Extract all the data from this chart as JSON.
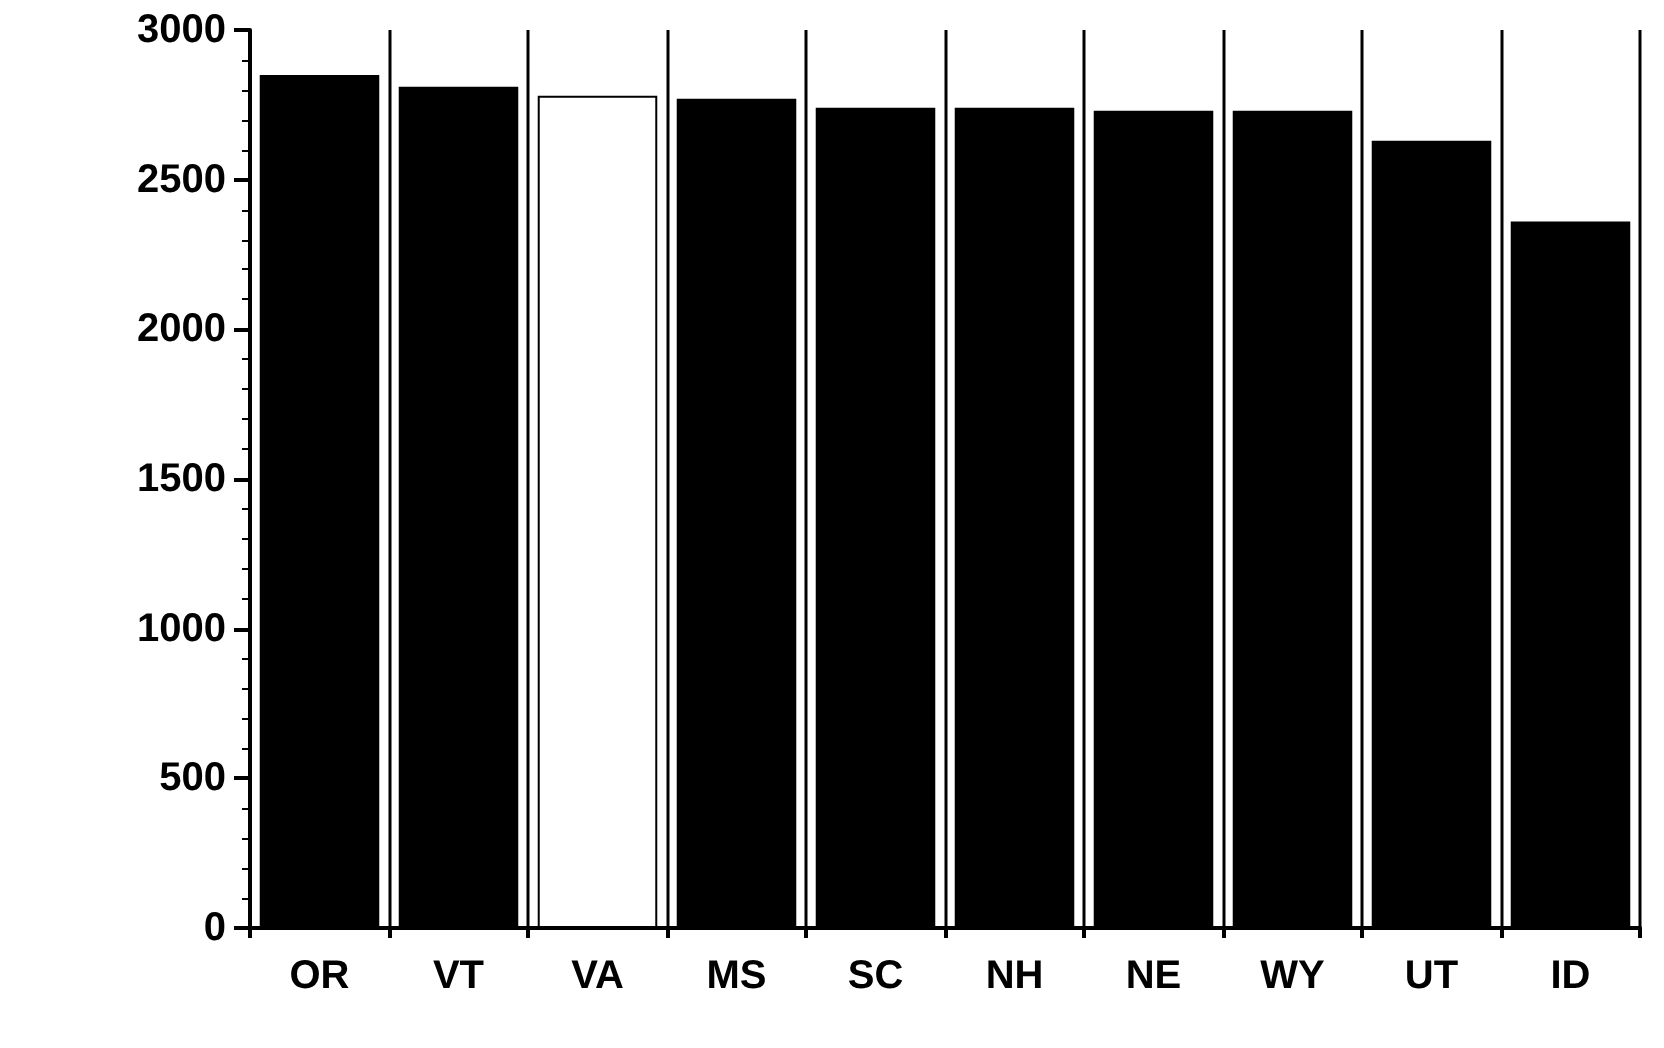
{
  "chart_data": {
    "type": "bar",
    "categories": [
      "OR",
      "VT",
      "VA",
      "MS",
      "SC",
      "NH",
      "NE",
      "WY",
      "UT",
      "ID"
    ],
    "values": [
      2850,
      2810,
      2780,
      2770,
      2740,
      2740,
      2730,
      2730,
      2630,
      2360
    ],
    "colors": [
      "#000000",
      "#000000",
      "#ffffff",
      "#000000",
      "#000000",
      "#000000",
      "#000000",
      "#000000",
      "#000000",
      "#000000"
    ],
    "ylim": [
      0,
      3000
    ],
    "yticks": [
      0,
      500,
      1000,
      1500,
      2000,
      2500,
      3000
    ],
    "grid": "x"
  }
}
